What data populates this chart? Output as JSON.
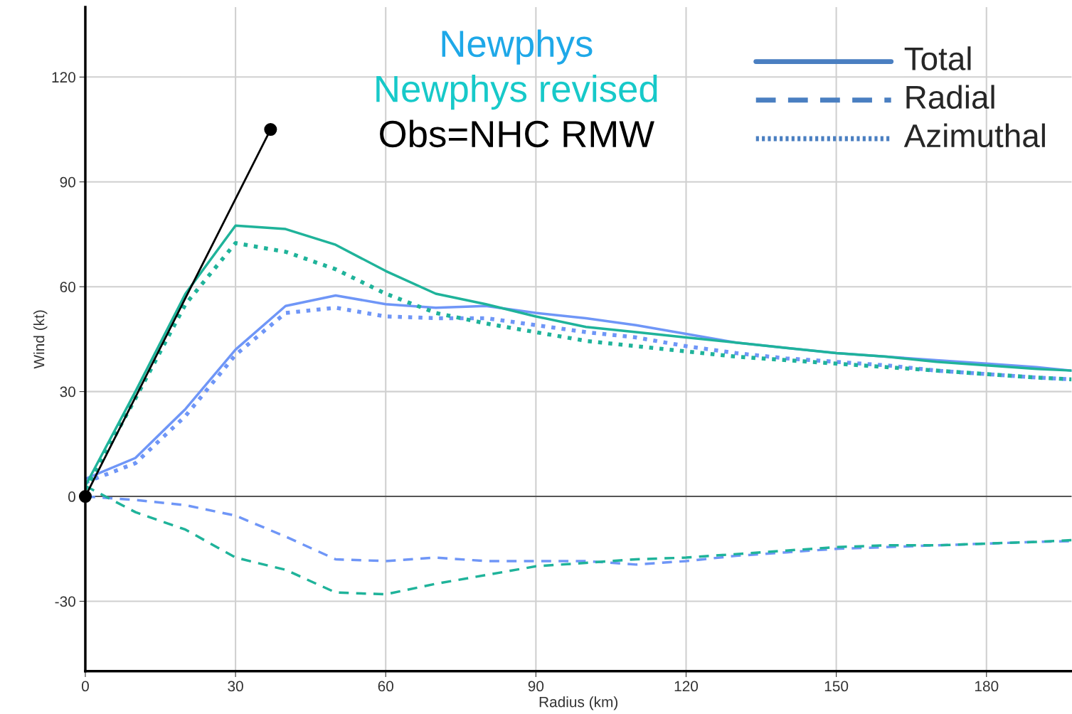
{
  "chart_data": {
    "type": "line",
    "xlabel": "Radius (km)",
    "ylabel": "Wind (kt)",
    "xlim": [
      0,
      197
    ],
    "ylim": [
      -50,
      140
    ],
    "xticks": [
      0,
      30,
      60,
      90,
      120,
      150,
      180
    ],
    "yticks": [
      -30,
      0,
      30,
      60,
      90,
      120
    ],
    "grid": true,
    "legend": false,
    "ref_lines": [
      {
        "axis": "y",
        "value": 0,
        "color": "#555555"
      }
    ],
    "annotations": [
      "Newphys",
      "Newphys revised",
      "Obs=NHC RMW",
      "Total",
      "Radial",
      "Azimuthal"
    ],
    "x": [
      0,
      10,
      20,
      30,
      40,
      50,
      60,
      70,
      80,
      90,
      100,
      110,
      120,
      130,
      140,
      150,
      160,
      170,
      180,
      190,
      197
    ],
    "series": [
      {
        "color": "#6f96f7",
        "line_style": "solid",
        "values": [
          5,
          11,
          25,
          42,
          54.5,
          57.5,
          55,
          54,
          54.5,
          52.5,
          51,
          49,
          46.5,
          44,
          42.5,
          41,
          40,
          39,
          38,
          37,
          36
        ]
      },
      {
        "color": "#6f96f7",
        "line_style": "dashed",
        "values": [
          0,
          -1,
          -2.5,
          -5.5,
          -11.5,
          -18,
          -18.5,
          -17.5,
          -18.5,
          -18.5,
          -18.5,
          -19.5,
          -18.5,
          -17,
          -16,
          -15,
          -14.5,
          -14,
          -13.5,
          -13,
          -12.8
        ]
      },
      {
        "color": "#6f96f7",
        "line_style": "dotted",
        "values": [
          4,
          9.5,
          23,
          40.5,
          52.5,
          54,
          51.5,
          51,
          51,
          49,
          47,
          45.5,
          43,
          41,
          39.5,
          38.5,
          37.5,
          36,
          35,
          34,
          33.5
        ]
      },
      {
        "color": "#1fb39a",
        "line_style": "solid",
        "values": [
          3,
          30,
          58,
          77.5,
          76.5,
          72,
          64.5,
          58,
          55,
          51.5,
          48.5,
          47,
          45.5,
          44,
          42.5,
          41,
          40,
          38.5,
          37.5,
          36.5,
          36
        ]
      },
      {
        "color": "#1fb39a",
        "line_style": "dashed",
        "values": [
          3,
          -4.5,
          -9.5,
          -17.5,
          -21,
          -27.5,
          -28,
          -25,
          -22.5,
          -20,
          -19,
          -18,
          -17.5,
          -16.5,
          -15.5,
          -14.5,
          -14,
          -14,
          -13.5,
          -13,
          -12.5
        ]
      },
      {
        "color": "#1fb39a",
        "line_style": "dotted",
        "values": [
          2,
          28,
          55,
          72.5,
          70,
          65,
          58,
          52.5,
          49.5,
          47,
          44.5,
          43,
          41.5,
          40,
          39,
          38,
          37,
          36,
          35,
          34,
          33.5
        ]
      },
      {
        "color": "#000000",
        "line_style": "solid",
        "marker": "circle",
        "x": [
          0,
          37
        ],
        "values": [
          0,
          105
        ]
      }
    ]
  }
}
